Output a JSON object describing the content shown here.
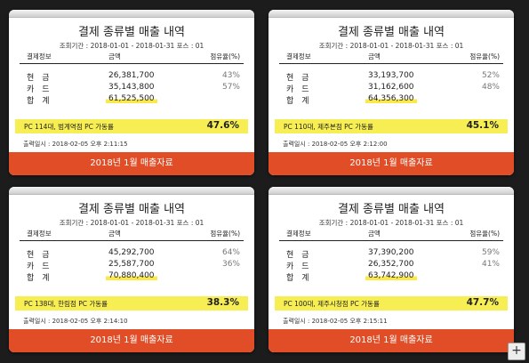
{
  "common": {
    "title": "결제 종류별 매출 내역",
    "col_info": "결제정보",
    "col_amount": "금액",
    "col_share": "점유율(%)",
    "lbl_cash": "현　금",
    "lbl_card": "카　드",
    "lbl_total": "합　계",
    "footer": "2018년 1월 매출자료",
    "highlight_color": "#f7ee53",
    "footer_color": "#e04d26"
  },
  "cards": [
    {
      "period": "조회기간 : 2018-01-01 - 2018-01-31  포스 : 01",
      "cash": "26,381,700",
      "cash_pct": "43%",
      "card": "35,143,800",
      "card_pct": "57%",
      "total": "61,525,500",
      "pc": "PC 114대, 범계역점 PC 가동률",
      "pc_pct": "47.6%",
      "printed": "출력일시 : 2018-02-05 오후 2:11:15"
    },
    {
      "period": "조회기간 : 2018-01-01 - 2018-01-31  포스 : 01",
      "cash": "33,193,700",
      "cash_pct": "52%",
      "card": "31,162,600",
      "card_pct": "48%",
      "total": "64,356,300",
      "pc": "PC 110대, 제주본점 PC 가동률",
      "pc_pct": "45.1%",
      "printed": "출력일시 : 2018-02-05 오후 2:12:00"
    },
    {
      "period": "조회기간 : 2018-01-01 - 2018-01-31  포스 : 01",
      "cash": "45,292,700",
      "cash_pct": "64%",
      "card": "25,587,700",
      "card_pct": "36%",
      "total": "70,880,400",
      "pc": "PC 138대, 한림점 PC 가동률",
      "pc_pct": "38.3%",
      "printed": "출력일시 : 2018-02-05 오후 2:14:10"
    },
    {
      "period": "조회기간 : 2018-01-01 - 2018-01-31  포스 : 01",
      "cash": "37,390,200",
      "cash_pct": "59%",
      "card": "26,352,700",
      "card_pct": "41%",
      "total": "63,742,900",
      "pc": "PC 100대, 제주시청점 PC 가동률",
      "pc_pct": "47.7%",
      "printed": "출력일시 : 2018-02-05 오후 2:15:11"
    }
  ],
  "ui": {
    "plus_icon": "+"
  }
}
